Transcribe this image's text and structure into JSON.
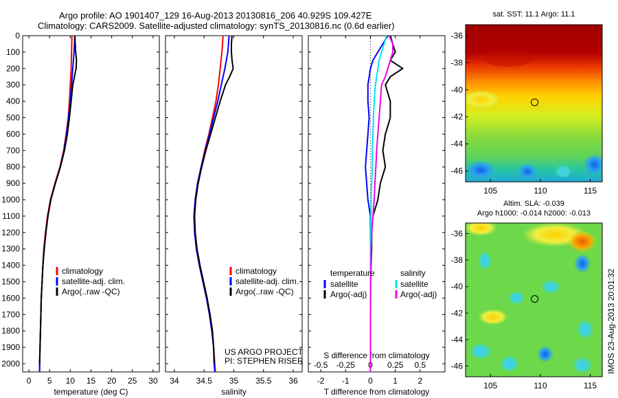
{
  "header": {
    "line1": "Argo profile: AO 1901407_129 16-Aug-2013 20130816_206 40.929S 109.427E",
    "line2": "Climatology: CARS2009. Satellite-adjusted climatology: synTS_20130816.nc (0.6d earlier)"
  },
  "colors": {
    "climatology": "#ff0000",
    "satellite": "#0000ff",
    "argo": "#000000",
    "salinity_satellite": "#00e5ee",
    "salinity_argo": "#ee00ee"
  },
  "depth_axis": {
    "ylim": [
      0,
      2050
    ],
    "ticks": [
      "0",
      "100",
      "200",
      "300",
      "400",
      "500",
      "600",
      "700",
      "800",
      "900",
      "1000",
      "1100",
      "1200",
      "1300",
      "1400",
      "1500",
      "1600",
      "1700",
      "1800",
      "1900",
      "2000"
    ],
    "tick_values": [
      0,
      100,
      200,
      300,
      400,
      500,
      600,
      700,
      800,
      900,
      1000,
      1100,
      1200,
      1300,
      1400,
      1500,
      1600,
      1700,
      1800,
      1900,
      2000
    ]
  },
  "chart_data": [
    {
      "type": "line",
      "xlabel": "temperature (deg C)",
      "xlim": [
        -1.5,
        31.5
      ],
      "x_ticks": [
        "0",
        "5",
        "10",
        "15",
        "20",
        "25",
        "30"
      ],
      "x_tick_values": [
        0,
        5,
        10,
        15,
        20,
        25,
        30
      ],
      "legend": [
        "climatology",
        "satellite-adj. clim.",
        "Argo(..raw -QC)"
      ],
      "legend_position": "lower-center",
      "series": [
        {
          "name": "climatology",
          "depth": [
            0,
            100,
            200,
            300,
            400,
            500,
            600,
            700,
            800,
            900,
            1000,
            1100,
            1200,
            1300,
            1400,
            1500,
            1600,
            1700,
            1800,
            1900,
            2000,
            2050
          ],
          "values": [
            10.4,
            10.3,
            10.2,
            10.0,
            9.8,
            9.5,
            9.0,
            8.4,
            7.5,
            6.3,
            5.2,
            4.5,
            4.0,
            3.6,
            3.4,
            3.2,
            3.0,
            2.9,
            2.8,
            2.7,
            2.6,
            2.6
          ]
        },
        {
          "name": "satellite-adj. clim.",
          "depth": [
            0,
            100,
            200,
            300,
            400,
            500,
            600,
            700,
            800,
            900,
            1000,
            1100,
            1200,
            1300,
            1400,
            1500,
            1600,
            1700,
            1800,
            1900,
            2000,
            2050
          ],
          "values": [
            11.1,
            10.9,
            10.6,
            10.3,
            10.0,
            9.6,
            9.1,
            8.5,
            7.6,
            6.4,
            5.3,
            4.6,
            4.1,
            3.7,
            3.4,
            3.2,
            3.0,
            2.9,
            2.8,
            2.7,
            2.6,
            2.6
          ]
        },
        {
          "name": "Argo(..raw -QC)",
          "depth": [
            0,
            50,
            100,
            150,
            200,
            250,
            300,
            400,
            500,
            600,
            700,
            800,
            900,
            1000,
            1100,
            1200,
            1300,
            1400,
            1500,
            1600,
            1700,
            1800,
            1900,
            2000
          ],
          "values": [
            11.1,
            11.2,
            11.3,
            11.5,
            11.4,
            11.0,
            10.6,
            10.2,
            9.8,
            9.3,
            8.6,
            7.6,
            6.4,
            5.3,
            4.6,
            4.1,
            3.7,
            3.4,
            3.2,
            3.0,
            2.9,
            2.8,
            2.7,
            2.6
          ]
        }
      ]
    },
    {
      "type": "line",
      "xlabel": "salinity",
      "xlim": [
        33.85,
        36.15
      ],
      "x_ticks": [
        "34",
        "34.5",
        "35",
        "35.5",
        "36"
      ],
      "x_tick_values": [
        34,
        34.5,
        35,
        35.5,
        36
      ],
      "legend": [
        "climatology",
        "satellite-adj. clim.",
        "Argo(..raw -QC)"
      ],
      "legend_position": "lower-center",
      "annotation": [
        "US ARGO PROJECT",
        "PI: STEPHEN RISER"
      ],
      "series": [
        {
          "name": "climatology",
          "depth": [
            0,
            100,
            200,
            300,
            400,
            500,
            600,
            700,
            800,
            900,
            1000,
            1100,
            1200,
            1300,
            1400,
            1500,
            1600,
            1700,
            1800,
            1900,
            2000,
            2050
          ],
          "values": [
            34.82,
            34.8,
            34.77,
            34.74,
            34.7,
            34.64,
            34.58,
            34.51,
            34.45,
            34.39,
            34.35,
            34.33,
            34.34,
            34.37,
            34.42,
            34.48,
            34.54,
            34.59,
            34.63,
            34.66,
            34.68,
            34.69
          ]
        },
        {
          "name": "satellite-adj. clim.",
          "depth": [
            0,
            100,
            200,
            300,
            400,
            500,
            600,
            700,
            800,
            900,
            1000,
            1100,
            1200,
            1300,
            1400,
            1500,
            1600,
            1700,
            1800,
            1900,
            2000,
            2050
          ],
          "values": [
            34.92,
            34.9,
            34.85,
            34.79,
            34.73,
            34.66,
            34.59,
            34.52,
            34.45,
            34.39,
            34.35,
            34.33,
            34.34,
            34.37,
            34.42,
            34.48,
            34.54,
            34.59,
            34.63,
            34.66,
            34.67,
            34.68
          ]
        },
        {
          "name": "Argo(..raw -QC)",
          "depth": [
            0,
            50,
            100,
            150,
            200,
            250,
            300,
            400,
            500,
            600,
            700,
            800,
            900,
            1000,
            1100,
            1200,
            1300,
            1400,
            1500,
            1600,
            1700,
            1800,
            1900,
            2000
          ],
          "values": [
            34.97,
            34.96,
            34.96,
            34.97,
            34.99,
            34.93,
            34.86,
            34.77,
            34.69,
            34.61,
            34.53,
            34.46,
            34.4,
            34.36,
            34.34,
            34.35,
            34.38,
            34.43,
            34.49,
            34.55,
            34.6,
            34.64,
            34.66,
            34.67
          ]
        }
      ]
    },
    {
      "type": "line",
      "xlabel": "T difference from climatology",
      "xlabel_top": "S difference from climatology",
      "xlim": [
        -2.5,
        3.0
      ],
      "x_ticks": [
        "-2",
        "-1",
        "0",
        "1",
        "2"
      ],
      "x_tick_values": [
        -2,
        -1,
        0,
        1,
        2
      ],
      "x_ticks_top": [
        "-0.5",
        "-0.25",
        "0",
        "0.25",
        "0.5"
      ],
      "x_tick_values_top_position": [
        -2,
        -1,
        0,
        1,
        2
      ],
      "legend_left_title": "temperature",
      "legend_left": [
        "satellite",
        "Argo(-adj)"
      ],
      "legend_right_title": "salinity",
      "legend_right": [
        "satellite",
        "Argo(-adj)"
      ],
      "series": [
        {
          "name": "T satellite",
          "depth": [
            0,
            50,
            100,
            150,
            200,
            300,
            400,
            500,
            600,
            700,
            800,
            900,
            1000,
            1100,
            1200,
            1300,
            1500,
            1700,
            1900,
            2050
          ],
          "values": [
            0.7,
            0.5,
            0.3,
            0.1,
            0.0,
            -0.1,
            -0.1,
            -0.05,
            -0.1,
            -0.15,
            -0.2,
            -0.15,
            -0.1,
            0.0,
            0.0,
            0.0,
            0.0,
            0.0,
            0.0,
            0.0
          ]
        },
        {
          "name": "T Argo(-adj)",
          "depth": [
            0,
            50,
            100,
            150,
            200,
            250,
            300,
            400,
            500,
            600,
            700,
            800,
            900,
            1000,
            1100,
            1200,
            1300,
            1500,
            1700,
            1900,
            2050
          ],
          "values": [
            0.8,
            0.9,
            1.0,
            0.8,
            1.3,
            0.8,
            0.6,
            0.8,
            0.8,
            0.6,
            0.5,
            0.6,
            0.4,
            0.3,
            0.1,
            0.05,
            0.05,
            0.0,
            0.0,
            0.0,
            0.0
          ]
        },
        {
          "name": "S satellite",
          "depth": [
            0,
            50,
            100,
            150,
            200,
            300,
            400,
            500,
            600,
            700,
            800,
            900,
            1000,
            1100,
            1200,
            1300,
            1500,
            1700,
            1900,
            2050
          ],
          "values": [
            0.65,
            0.55,
            0.45,
            0.35,
            0.3,
            0.2,
            0.15,
            0.12,
            0.1,
            0.08,
            0.07,
            0.05,
            0.03,
            0.02,
            0.01,
            0.0,
            0.0,
            0.0,
            0.0,
            0.0
          ]
        },
        {
          "name": "S Argo(-adj)",
          "depth": [
            0,
            50,
            100,
            150,
            200,
            250,
            300,
            400,
            500,
            600,
            700,
            800,
            900,
            1000,
            1100,
            1200,
            1300,
            1500,
            1700,
            1900,
            2050
          ],
          "values": [
            0.75,
            0.9,
            0.9,
            0.8,
            0.7,
            0.6,
            0.45,
            0.4,
            0.35,
            0.3,
            0.25,
            0.22,
            0.18,
            0.15,
            0.1,
            0.05,
            0.03,
            0.01,
            0.0,
            0.0,
            0.0
          ]
        }
      ]
    },
    {
      "type": "heatmap",
      "title": "sat. SST: 11.1  Argo: 11.1",
      "x_ticks": [
        "105",
        "110",
        "115"
      ],
      "x_tick_values": [
        105,
        110,
        115
      ],
      "y_ticks": [
        "-36",
        "-38",
        "-40",
        "-42",
        "-44",
        "-46"
      ],
      "y_tick_values": [
        -36,
        -38,
        -40,
        -42,
        -44,
        -46
      ],
      "xlim": [
        102.5,
        116.2
      ],
      "ylim": [
        -46.8,
        -35.2
      ],
      "marker": {
        "lon": 109.427,
        "lat": -40.929
      }
    },
    {
      "type": "heatmap",
      "title_line1": "Altim. SLA: -0.039",
      "title_line2": "Argo h1000: -0.014  h2000: -0.013",
      "x_ticks": [
        "105",
        "110",
        "115"
      ],
      "x_tick_values": [
        105,
        110,
        115
      ],
      "y_ticks": [
        "-36",
        "-38",
        "-40",
        "-42",
        "-44",
        "-46"
      ],
      "y_tick_values": [
        -36,
        -38,
        -40,
        -42,
        -44,
        -46
      ],
      "xlim": [
        102.5,
        116.2
      ],
      "ylim": [
        -46.8,
        -35.2
      ],
      "marker": {
        "lon": 109.427,
        "lat": -40.929
      }
    }
  ],
  "credit": "IMOS 23-Aug-2013 20:01:32"
}
